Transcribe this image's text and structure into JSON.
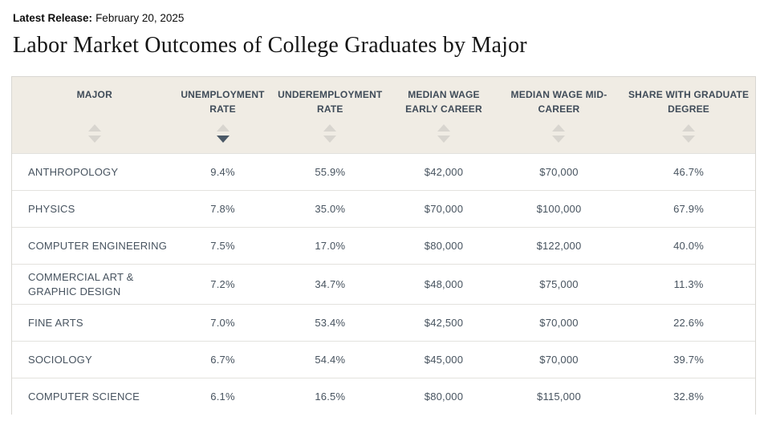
{
  "header": {
    "latest_release_label": "Latest Release:",
    "latest_release_date": "February 20, 2025",
    "title": "Labor Market Outcomes of College Graduates by Major"
  },
  "colors": {
    "table_header_bg": "#f0ece4",
    "table_header_text": "#3f4b58",
    "sort_arrow_inactive": "#d8d5cf",
    "sort_arrow_active": "#4a5866",
    "cell_text": "#47535f",
    "table_border": "#d9d7d2",
    "row_separator": "#e3e2de"
  },
  "table": {
    "columns": [
      {
        "id": "major",
        "label": "MAJOR",
        "sort": "none"
      },
      {
        "id": "unemployment-rate",
        "label": "UNEMPLOYMENT RATE",
        "sort": "desc"
      },
      {
        "id": "underemployment-rate",
        "label": "UNDEREMPLOYMENT RATE",
        "sort": "none"
      },
      {
        "id": "median-wage-early-career",
        "label": "MEDIAN WAGE EARLY CAREER",
        "sort": "none"
      },
      {
        "id": "median-wage-mid-career",
        "label": "MEDIAN WAGE MID-CAREER",
        "sort": "none"
      },
      {
        "id": "share-with-graduate-degree",
        "label": "SHARE WITH GRADUATE DEGREE",
        "sort": "none"
      }
    ],
    "rows": [
      [
        "ANTHROPOLOGY",
        "9.4%",
        "55.9%",
        "$42,000",
        "$70,000",
        "46.7%"
      ],
      [
        "PHYSICS",
        "7.8%",
        "35.0%",
        "$70,000",
        "$100,000",
        "67.9%"
      ],
      [
        "COMPUTER ENGINEERING",
        "7.5%",
        "17.0%",
        "$80,000",
        "$122,000",
        "40.0%"
      ],
      [
        "COMMERCIAL ART & GRAPHIC DESIGN",
        "7.2%",
        "34.7%",
        "$48,000",
        "$75,000",
        "11.3%"
      ],
      [
        "FINE ARTS",
        "7.0%",
        "53.4%",
        "$42,500",
        "$70,000",
        "22.6%"
      ],
      [
        "SOCIOLOGY",
        "6.7%",
        "54.4%",
        "$45,000",
        "$70,000",
        "39.7%"
      ],
      [
        "COMPUTER SCIENCE",
        "6.1%",
        "16.5%",
        "$80,000",
        "$115,000",
        "32.8%"
      ]
    ]
  },
  "chart_data": {
    "type": "table",
    "title": "Labor Market Outcomes of College Graduates by Major",
    "columns": [
      "MAJOR",
      "UNEMPLOYMENT RATE",
      "UNDEREMPLOYMENT RATE",
      "MEDIAN WAGE EARLY CAREER",
      "MEDIAN WAGE MID-CAREER",
      "SHARE WITH GRADUATE DEGREE"
    ],
    "sorted_by": "UNEMPLOYMENT RATE descending",
    "rows": [
      [
        "ANTHROPOLOGY",
        "9.4%",
        "55.9%",
        "$42,000",
        "$70,000",
        "46.7%"
      ],
      [
        "PHYSICS",
        "7.8%",
        "35.0%",
        "$70,000",
        "$100,000",
        "67.9%"
      ],
      [
        "COMPUTER ENGINEERING",
        "7.5%",
        "17.0%",
        "$80,000",
        "$122,000",
        "40.0%"
      ],
      [
        "COMMERCIAL ART & GRAPHIC DESIGN",
        "7.2%",
        "34.7%",
        "$48,000",
        "$75,000",
        "11.3%"
      ],
      [
        "FINE ARTS",
        "7.0%",
        "53.4%",
        "$42,500",
        "$70,000",
        "22.6%"
      ],
      [
        "SOCIOLOGY",
        "6.7%",
        "54.4%",
        "$45,000",
        "$70,000",
        "39.7%"
      ],
      [
        "COMPUTER SCIENCE",
        "6.1%",
        "16.5%",
        "$80,000",
        "$115,000",
        "32.8%"
      ]
    ]
  }
}
